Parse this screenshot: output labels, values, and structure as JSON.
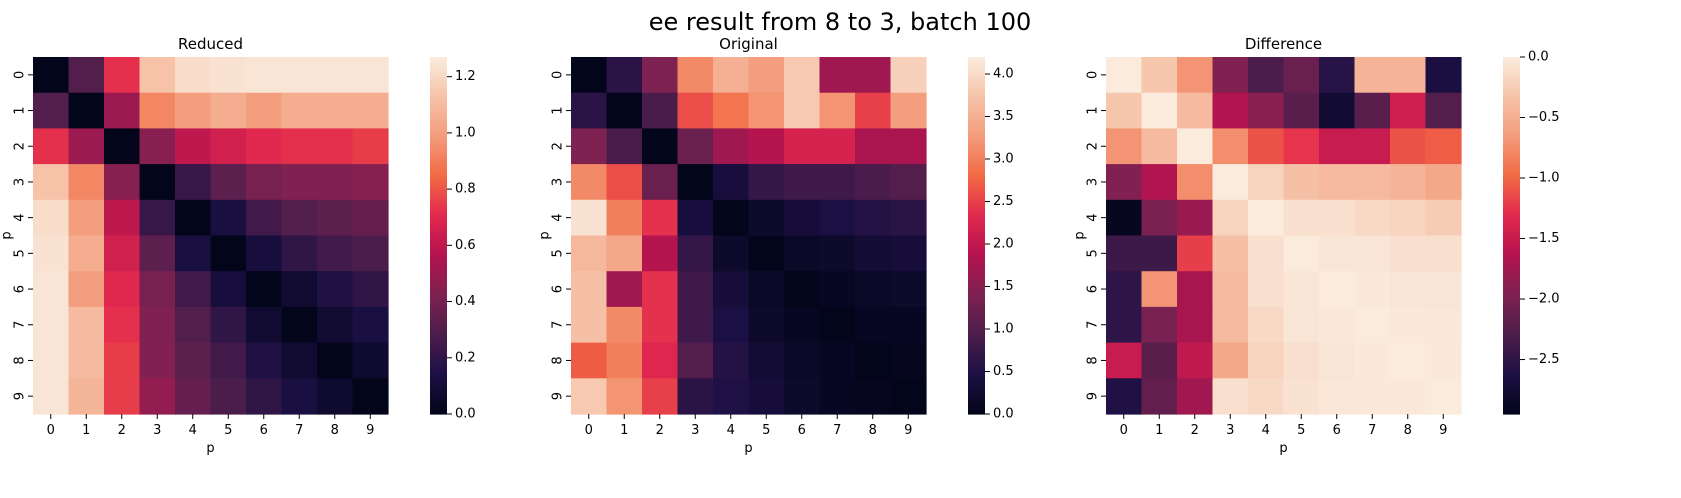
{
  "figure": {
    "suptitle": "ee result from 8 to 3, batch 100"
  },
  "chart_data": [
    {
      "type": "heatmap",
      "title": "Reduced",
      "xlabel": "p",
      "ylabel": "p",
      "x_categories": [
        "0",
        "1",
        "2",
        "3",
        "4",
        "5",
        "6",
        "7",
        "8",
        "9"
      ],
      "y_categories": [
        "0",
        "1",
        "2",
        "3",
        "4",
        "5",
        "6",
        "7",
        "8",
        "9"
      ],
      "colormap": "rocket",
      "vmin": 0,
      "vmax": 1.27,
      "colorbar_ticks": [
        {
          "value": 0,
          "label": "0.0"
        },
        {
          "value": 0.2,
          "label": "0.2"
        },
        {
          "value": 0.4,
          "label": "0.4"
        },
        {
          "value": 0.6,
          "label": "0.6"
        },
        {
          "value": 0.8,
          "label": "0.8"
        },
        {
          "value": 1.0,
          "label": "1.0"
        },
        {
          "value": 1.2,
          "label": "1.2"
        }
      ],
      "values": [
        [
          0.0,
          0.3,
          0.72,
          1.13,
          1.22,
          1.24,
          1.25,
          1.25,
          1.25,
          1.25
        ],
        [
          0.3,
          0.0,
          0.5,
          0.93,
          1.0,
          1.05,
          1.0,
          1.05,
          1.05,
          1.05
        ],
        [
          0.72,
          0.5,
          0.0,
          0.45,
          0.6,
          0.65,
          0.7,
          0.72,
          0.72,
          0.75
        ],
        [
          1.13,
          0.93,
          0.45,
          0.0,
          0.22,
          0.33,
          0.4,
          0.43,
          0.43,
          0.45
        ],
        [
          1.22,
          1.0,
          0.6,
          0.22,
          0.0,
          0.13,
          0.25,
          0.3,
          0.33,
          0.35
        ],
        [
          1.24,
          1.05,
          0.65,
          0.33,
          0.13,
          0.0,
          0.12,
          0.2,
          0.25,
          0.28
        ],
        [
          1.25,
          1.0,
          0.7,
          0.4,
          0.25,
          0.12,
          0.0,
          0.08,
          0.15,
          0.2
        ],
        [
          1.25,
          1.1,
          0.72,
          0.43,
          0.3,
          0.2,
          0.08,
          0.0,
          0.08,
          0.13
        ],
        [
          1.25,
          1.1,
          0.75,
          0.43,
          0.33,
          0.25,
          0.15,
          0.08,
          0.0,
          0.07
        ],
        [
          1.25,
          1.08,
          0.75,
          0.48,
          0.35,
          0.28,
          0.2,
          0.13,
          0.07,
          0.0
        ]
      ]
    },
    {
      "type": "heatmap",
      "title": "Original",
      "xlabel": "p",
      "ylabel": "p",
      "x_categories": [
        "0",
        "1",
        "2",
        "3",
        "4",
        "5",
        "6",
        "7",
        "8",
        "9"
      ],
      "y_categories": [
        "0",
        "1",
        "2",
        "3",
        "4",
        "5",
        "6",
        "7",
        "8",
        "9"
      ],
      "colormap": "rocket",
      "vmin": 0,
      "vmax": 4.2,
      "colorbar_ticks": [
        {
          "value": 0,
          "label": "0.0"
        },
        {
          "value": 0.5,
          "label": "0.5"
        },
        {
          "value": 1.0,
          "label": "1.0"
        },
        {
          "value": 1.5,
          "label": "1.5"
        },
        {
          "value": 2.0,
          "label": "2.0"
        },
        {
          "value": 2.5,
          "label": "2.5"
        },
        {
          "value": 3.0,
          "label": "3.0"
        },
        {
          "value": 3.5,
          "label": "3.5"
        },
        {
          "value": 4.0,
          "label": "4.0"
        }
      ],
      "values": [
        [
          0.0,
          0.6,
          1.4,
          3.1,
          3.5,
          3.3,
          3.8,
          1.7,
          1.7,
          3.9
        ],
        [
          0.6,
          0.0,
          0.9,
          2.6,
          2.9,
          3.2,
          3.8,
          3.2,
          2.5,
          3.3
        ],
        [
          1.4,
          0.9,
          0.0,
          1.2,
          1.7,
          1.9,
          2.2,
          2.2,
          1.8,
          1.8
        ],
        [
          3.1,
          2.6,
          1.2,
          0.0,
          0.4,
          0.7,
          0.8,
          0.8,
          0.9,
          1.0
        ],
        [
          4.1,
          3.0,
          2.4,
          0.4,
          0.0,
          0.2,
          0.35,
          0.45,
          0.55,
          0.6
        ],
        [
          3.6,
          3.4,
          1.9,
          0.7,
          0.2,
          0.0,
          0.15,
          0.2,
          0.3,
          0.35
        ],
        [
          3.7,
          1.7,
          2.4,
          0.8,
          0.35,
          0.15,
          0.0,
          0.1,
          0.15,
          0.2
        ],
        [
          3.7,
          3.1,
          2.4,
          0.8,
          0.45,
          0.2,
          0.1,
          0.0,
          0.1,
          0.1
        ],
        [
          2.7,
          3.0,
          2.3,
          1.0,
          0.55,
          0.3,
          0.15,
          0.1,
          0.0,
          0.05
        ],
        [
          3.8,
          3.2,
          2.5,
          0.6,
          0.5,
          0.35,
          0.2,
          0.1,
          0.05,
          0.0
        ]
      ]
    },
    {
      "type": "heatmap",
      "title": "Difference",
      "xlabel": "p",
      "ylabel": "p",
      "x_categories": [
        "0",
        "1",
        "2",
        "3",
        "4",
        "5",
        "6",
        "7",
        "8",
        "9"
      ],
      "y_categories": [
        "0",
        "1",
        "2",
        "3",
        "4",
        "5",
        "6",
        "7",
        "8",
        "9"
      ],
      "colormap": "rocket",
      "vmin": -2.95,
      "vmax": 0,
      "colorbar_ticks": [
        {
          "value": -2.5,
          "label": "−2.5"
        },
        {
          "value": -2.0,
          "label": "−2.0"
        },
        {
          "value": -1.5,
          "label": "−1.5"
        },
        {
          "value": -1.0,
          "label": "−1.0"
        },
        {
          "value": -0.5,
          "label": "−0.5"
        },
        {
          "value": 0,
          "label": "0.0"
        }
      ],
      "values": [
        [
          0.0,
          -0.3,
          -0.7,
          -1.95,
          -2.3,
          -2.1,
          -2.55,
          -0.45,
          -0.45,
          -2.65
        ],
        [
          -0.3,
          0.0,
          -0.4,
          -1.65,
          -1.9,
          -2.2,
          -2.75,
          -2.2,
          -1.45,
          -2.25
        ],
        [
          -0.7,
          -0.4,
          0.0,
          -0.75,
          -1.1,
          -1.25,
          -1.5,
          -1.5,
          -1.1,
          -1.05
        ],
        [
          -1.95,
          -1.65,
          -0.75,
          0.0,
          -0.2,
          -0.35,
          -0.4,
          -0.4,
          -0.45,
          -0.55
        ],
        [
          -2.9,
          -2.0,
          -1.8,
          -0.2,
          0.0,
          -0.1,
          -0.1,
          -0.15,
          -0.2,
          -0.25
        ],
        [
          -2.4,
          -2.4,
          -1.2,
          -0.35,
          -0.1,
          0.0,
          -0.05,
          -0.05,
          -0.1,
          -0.1
        ],
        [
          -2.5,
          -0.7,
          -1.7,
          -0.4,
          -0.1,
          -0.05,
          0.0,
          -0.02,
          -0.05,
          -0.05
        ],
        [
          -2.5,
          -2.0,
          -1.7,
          -0.4,
          -0.15,
          -0.05,
          -0.02,
          0.0,
          -0.02,
          -0.03
        ],
        [
          -1.5,
          -2.2,
          -1.55,
          -0.55,
          -0.2,
          -0.1,
          -0.05,
          -0.02,
          0.0,
          -0.02
        ],
        [
          -2.6,
          -2.15,
          -1.75,
          -0.1,
          -0.15,
          -0.07,
          -0.03,
          -0.02,
          -0.02,
          0.0
        ]
      ]
    }
  ]
}
